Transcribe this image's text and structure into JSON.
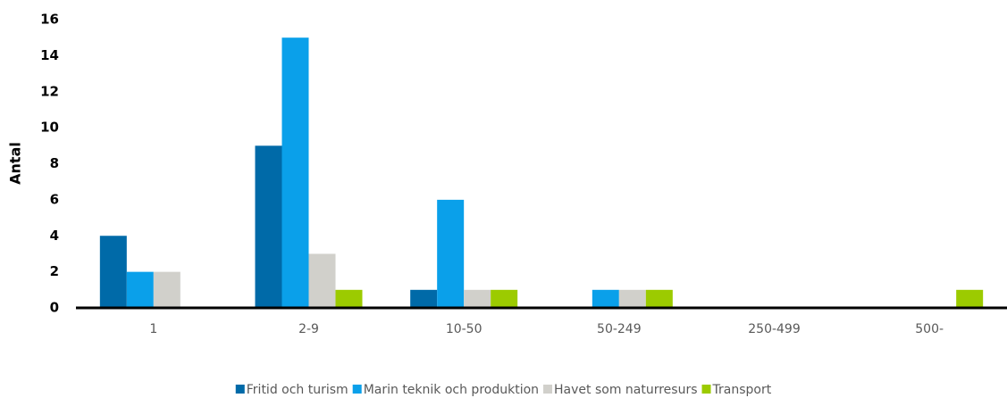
{
  "chart_data": {
    "type": "bar",
    "y_label": "Antal",
    "categories": [
      "1",
      "2-9",
      "10-50",
      "50-249",
      "250-499",
      "500-"
    ],
    "series": [
      {
        "name": "Fritid och turism",
        "color": "#006aa8",
        "values": [
          4,
          9,
          1,
          0,
          0,
          0
        ]
      },
      {
        "name": "Marin teknik och produktion",
        "color": "#0aa0ea",
        "values": [
          2,
          15,
          6,
          1,
          0,
          0
        ]
      },
      {
        "name": "Havet som naturresurs",
        "color": "#d1d0cb",
        "values": [
          2,
          3,
          1,
          1,
          0,
          0
        ]
      },
      {
        "name": "Transport",
        "color": "#9ccb00",
        "values": [
          0,
          1,
          1,
          1,
          0,
          1
        ]
      }
    ],
    "ylim": [
      0,
      16
    ],
    "yticks": [
      0,
      2,
      4,
      6,
      8,
      10,
      12,
      14,
      16
    ],
    "grid": false,
    "legend": "bottom"
  }
}
